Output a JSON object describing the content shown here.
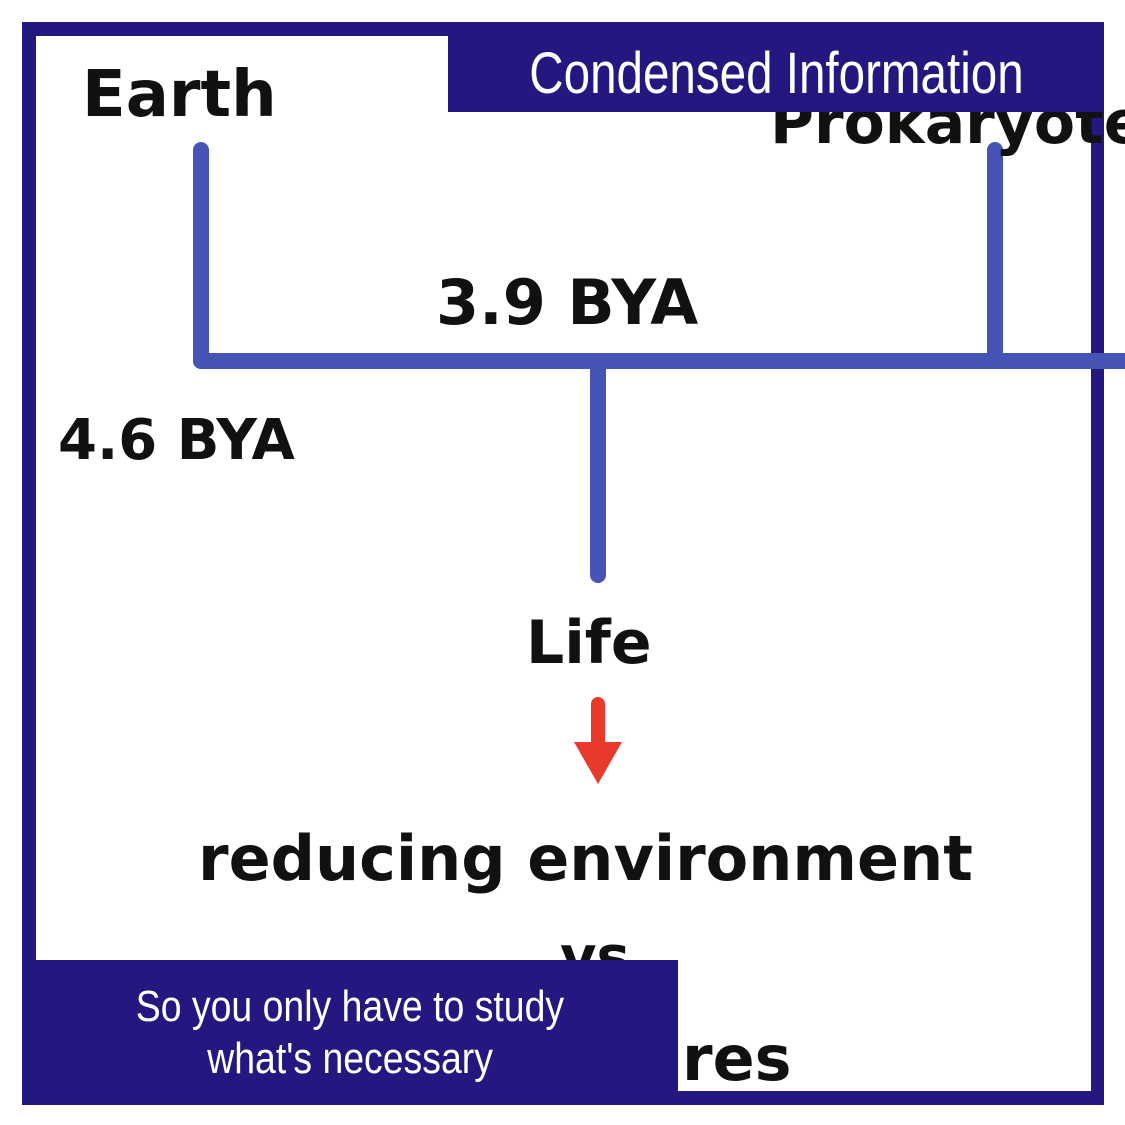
{
  "header": {
    "title": "Condensed Information"
  },
  "footer": {
    "line1": "So you only have to study",
    "line2": "what's necessary"
  },
  "timeline": {
    "earth_label": "Earth",
    "earth_date": "4.6 BYA",
    "life_date": "3.9 BYA",
    "life_label": "Life",
    "environment_text": "reducing environment",
    "partial_vs": "vs",
    "partial_res": "res",
    "partial_top_right": "Prokaryotes"
  },
  "colors": {
    "banner": "#23187f",
    "timeline_line": "#4654b4",
    "arrow": "#e8392a",
    "ink": "#111111"
  }
}
